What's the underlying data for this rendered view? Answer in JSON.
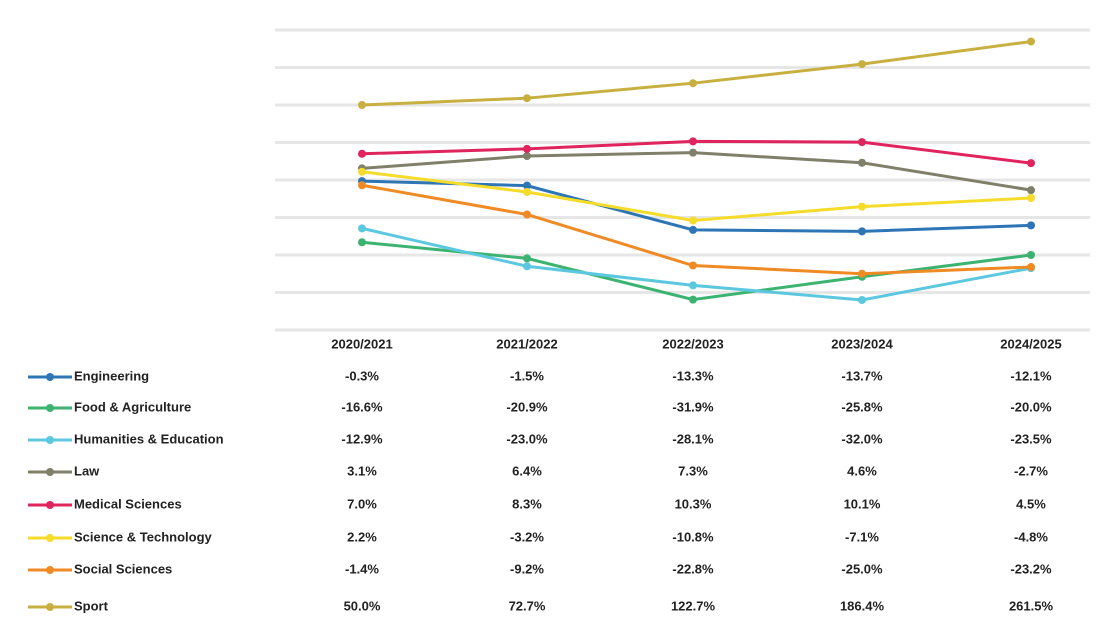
{
  "chart_data": {
    "type": "line",
    "categories": [
      "2020/2021",
      "2021/2022",
      "2022/2023",
      "2023/2024",
      "2024/2025"
    ],
    "ylim": [
      -40,
      40
    ],
    "yticks": [
      -40,
      -30,
      -20,
      -10,
      0,
      10,
      20,
      30,
      40
    ],
    "y2lim": [
      -700,
      300
    ],
    "grid": true,
    "series": [
      {
        "name": "Engineering",
        "color": "#2e75b6",
        "values": [
          -0.3,
          -1.5,
          -13.3,
          -13.7,
          -12.1
        ],
        "value_labels": [
          "-0.3%",
          "-1.5%",
          "-13.3%",
          "-13.7%",
          "-12.1%"
        ]
      },
      {
        "name": "Food & Agriculture",
        "color": "#3cb371",
        "values": [
          -16.6,
          -20.9,
          -31.9,
          -25.8,
          -20.0
        ],
        "value_labels": [
          "-16.6%",
          "-20.9%",
          "-31.9%",
          "-25.8%",
          "-20.0%"
        ]
      },
      {
        "name": "Humanities & Education",
        "color": "#5bc8e0",
        "values": [
          -12.9,
          -23.0,
          -28.1,
          -32.0,
          -23.5
        ],
        "value_labels": [
          "-12.9%",
          "-23.0%",
          "-28.1%",
          "-32.0%",
          "-23.5%"
        ]
      },
      {
        "name": "Law",
        "color": "#7f7f6a",
        "values": [
          3.1,
          6.4,
          7.3,
          4.6,
          -2.7
        ],
        "value_labels": [
          "3.1%",
          "6.4%",
          "7.3%",
          "4.6%",
          "-2.7%"
        ]
      },
      {
        "name": "Medical Sciences",
        "color": "#e0245e",
        "values": [
          7.0,
          8.3,
          10.3,
          10.1,
          4.5
        ],
        "value_labels": [
          "7.0%",
          "8.3%",
          "10.3%",
          "10.1%",
          "4.5%"
        ]
      },
      {
        "name": "Science & Technology",
        "color": "#f5dc2a",
        "values": [
          2.2,
          -3.2,
          -10.8,
          -7.1,
          -4.8
        ],
        "value_labels": [
          "2.2%",
          "-3.2%",
          "-10.8%",
          "-7.1%",
          "-4.8%"
        ]
      },
      {
        "name": "Social Sciences",
        "color": "#f08a24",
        "values": [
          -1.4,
          -9.2,
          -22.8,
          -25.0,
          -23.2
        ],
        "value_labels": [
          "-1.4%",
          "-9.2%",
          "-22.8%",
          "-25.0%",
          "-23.2%"
        ]
      },
      {
        "name": "Sport",
        "color": "#c8b040",
        "axis": "y2",
        "values": [
          50.0,
          72.7,
          122.7,
          186.4,
          261.5
        ],
        "value_labels": [
          "50.0%",
          "72.7%",
          "122.7%",
          "186.4%",
          "261.5%"
        ]
      }
    ]
  }
}
